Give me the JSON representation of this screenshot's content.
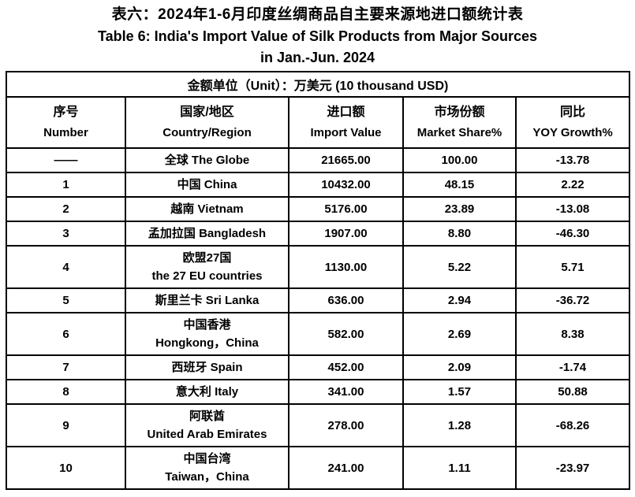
{
  "title": {
    "line1_zh": "表六：2024年1-6月印度丝绸商品自主要来源地进口额统计表",
    "line2_en": "Table 6: India's Import Value of Silk Products from Major Sources",
    "line3_en": "in Jan.-Jun. 2024"
  },
  "table": {
    "unit_note": "金额单位（Unit）：万美元 (10 thousand USD)",
    "columns": [
      {
        "zh": "序号",
        "en": "Number"
      },
      {
        "zh": "国家/地区",
        "en": "Country/Region"
      },
      {
        "zh": "进口额",
        "en": "Import Value"
      },
      {
        "zh": "市场份额",
        "en": "Market Share%"
      },
      {
        "zh": "同比",
        "en": "YOY Growth%"
      }
    ],
    "rows": [
      {
        "number": "——",
        "country_line1": "全球 The Globe",
        "country_line2": "",
        "import_value": "21665.00",
        "market_share": "100.00",
        "yoy_growth": "-13.78"
      },
      {
        "number": "1",
        "country_line1": "中国 China",
        "country_line2": "",
        "import_value": "10432.00",
        "market_share": "48.15",
        "yoy_growth": "2.22"
      },
      {
        "number": "2",
        "country_line1": "越南 Vietnam",
        "country_line2": "",
        "import_value": "5176.00",
        "market_share": "23.89",
        "yoy_growth": "-13.08"
      },
      {
        "number": "3",
        "country_line1": "孟加拉国 Bangladesh",
        "country_line2": "",
        "import_value": "1907.00",
        "market_share": "8.80",
        "yoy_growth": "-46.30"
      },
      {
        "number": "4",
        "country_line1": "欧盟27国",
        "country_line2": "the 27 EU countries",
        "import_value": "1130.00",
        "market_share": "5.22",
        "yoy_growth": "5.71"
      },
      {
        "number": "5",
        "country_line1": "斯里兰卡 Sri Lanka",
        "country_line2": "",
        "import_value": "636.00",
        "market_share": "2.94",
        "yoy_growth": "-36.72"
      },
      {
        "number": "6",
        "country_line1": "中国香港",
        "country_line2": "Hongkong，China",
        "import_value": "582.00",
        "market_share": "2.69",
        "yoy_growth": "8.38"
      },
      {
        "number": "7",
        "country_line1": "西班牙 Spain",
        "country_line2": "",
        "import_value": "452.00",
        "market_share": "2.09",
        "yoy_growth": "-1.74"
      },
      {
        "number": "8",
        "country_line1": "意大利 Italy",
        "country_line2": "",
        "import_value": "341.00",
        "market_share": "1.57",
        "yoy_growth": "50.88"
      },
      {
        "number": "9",
        "country_line1": "阿联酋",
        "country_line2": "United Arab Emirates",
        "import_value": "278.00",
        "market_share": "1.28",
        "yoy_growth": "-68.26"
      },
      {
        "number": "10",
        "country_line1": "中国台湾",
        "country_line2": "Taiwan，China",
        "import_value": "241.00",
        "market_share": "1.11",
        "yoy_growth": "-23.97"
      }
    ]
  }
}
